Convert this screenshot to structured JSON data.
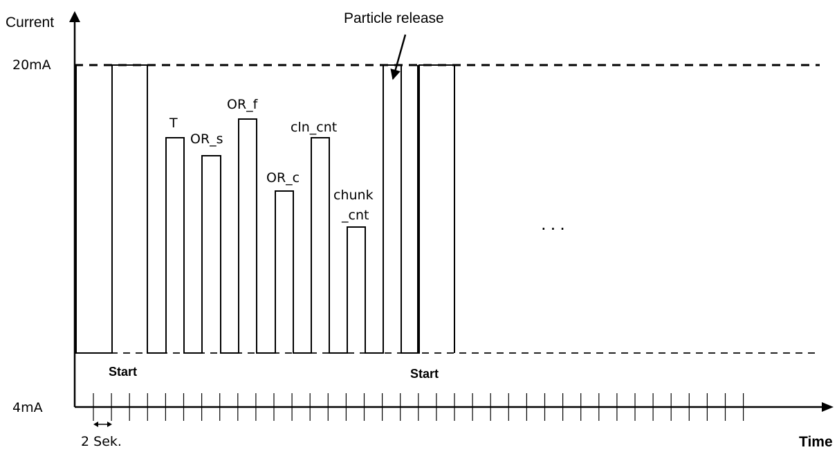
{
  "axes": {
    "y_label": "Current",
    "x_label": "Time",
    "y_top_label": "20mA",
    "y_bottom_label": "4mA"
  },
  "annotations": {
    "particle_release": "Particle release",
    "start_first": "Start",
    "start_second": "Start",
    "ellipsis": "...",
    "interval": "2 Sek."
  },
  "pulses": [
    {
      "label": "T",
      "level": 0.75
    },
    {
      "label": "OR_s",
      "level": 0.69
    },
    {
      "label": "OR_f",
      "level": 0.81
    },
    {
      "label": "OR_c",
      "level": 0.565
    },
    {
      "label": "cln_cnt",
      "level": 0.75
    },
    {
      "label": "chunk",
      "label2": "_cnt",
      "level": 0.44
    }
  ]
}
